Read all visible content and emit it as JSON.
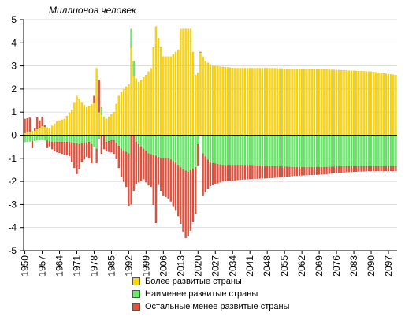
{
  "chart_data": {
    "type": "bar",
    "stacked": "diverging",
    "units_label": "Миллионов человек",
    "ylim": [
      -5,
      5
    ],
    "yticks": [
      -5,
      -4,
      -3,
      -2,
      -1,
      0,
      1,
      2,
      3,
      4,
      5
    ],
    "x_start": 1950,
    "x_end": 2100,
    "xtick_labels": [
      "1950",
      "1957",
      "1964",
      "1971",
      "1978",
      "1985",
      "1992",
      "1999",
      "2006",
      "2013",
      "2020",
      "2027",
      "2034",
      "2041",
      "2048",
      "2055",
      "2062",
      "2069",
      "2076",
      "2083",
      "2090",
      "2097"
    ],
    "grid": true,
    "legend_position": "bottom",
    "colors": {
      "developed": "#FFD700",
      "developed_edge": "#D4B000",
      "least_developed": "#66EE66",
      "least_developed_edge": "#33BB33",
      "other_developing": "#E8503A",
      "other_developing_edge": "#B0301F"
    },
    "series": [
      {
        "name": "Более развитые страны",
        "key": "developed",
        "keyframes": [
          [
            1950,
            0.1
          ],
          [
            1954,
            0.2
          ],
          [
            1957,
            0.4
          ],
          [
            1960,
            0.3
          ],
          [
            1963,
            0.6
          ],
          [
            1966,
            0.7
          ],
          [
            1969,
            1.1
          ],
          [
            1971,
            1.7
          ],
          [
            1973,
            1.4
          ],
          [
            1975,
            1.2
          ],
          [
            1978,
            1.4
          ],
          [
            1979,
            2.9
          ],
          [
            1980,
            1.0
          ],
          [
            1983,
            0.7
          ],
          [
            1986,
            1.0
          ],
          [
            1988,
            1.7
          ],
          [
            1990,
            2.0
          ],
          [
            1992,
            2.2
          ],
          [
            1993,
            3.8
          ],
          [
            1994,
            2.6
          ],
          [
            1996,
            2.3
          ],
          [
            1999,
            2.6
          ],
          [
            2001,
            2.9
          ],
          [
            2003,
            4.7
          ],
          [
            2004,
            4.2
          ],
          [
            2006,
            3.4
          ],
          [
            2009,
            3.4
          ],
          [
            2012,
            3.7
          ],
          [
            2013,
            4.6
          ],
          [
            2017,
            4.6
          ],
          [
            2019,
            2.6
          ],
          [
            2020,
            2.7
          ],
          [
            2021,
            3.6
          ],
          [
            2023,
            3.2
          ],
          [
            2026,
            3.0
          ],
          [
            2035,
            2.9
          ],
          [
            2050,
            2.9
          ],
          [
            2060,
            2.85
          ],
          [
            2070,
            2.85
          ],
          [
            2080,
            2.8
          ],
          [
            2090,
            2.75
          ],
          [
            2100,
            2.6
          ]
        ]
      },
      {
        "name": "Наименее развитые страны",
        "key": "least_developed",
        "keyframes": [
          [
            1950,
            -0.3
          ],
          [
            1957,
            -0.2
          ],
          [
            1961,
            -0.3
          ],
          [
            1964,
            -0.3
          ],
          [
            1968,
            -0.3
          ],
          [
            1972,
            -0.4
          ],
          [
            1976,
            -0.3
          ],
          [
            1979,
            -0.6
          ],
          [
            1981,
            0.3
          ],
          [
            1983,
            -0.3
          ],
          [
            1986,
            -0.2
          ],
          [
            1989,
            -0.6
          ],
          [
            1992,
            -0.8
          ],
          [
            1993,
            0.8
          ],
          [
            1994,
            0.6
          ],
          [
            1995,
            -0.3
          ],
          [
            1997,
            -0.5
          ],
          [
            2000,
            -0.8
          ],
          [
            2003,
            -0.9
          ],
          [
            2005,
            -1.0
          ],
          [
            2008,
            -1.0
          ],
          [
            2011,
            -1.2
          ],
          [
            2014,
            -1.5
          ],
          [
            2016,
            -1.6
          ],
          [
            2019,
            -1.4
          ],
          [
            2020,
            -0.4
          ],
          [
            2021,
            0.0
          ],
          [
            2022,
            -0.8
          ],
          [
            2025,
            -1.2
          ],
          [
            2030,
            -1.3
          ],
          [
            2040,
            -1.3
          ],
          [
            2050,
            -1.35
          ],
          [
            2060,
            -1.4
          ],
          [
            2070,
            -1.4
          ],
          [
            2080,
            -1.35
          ],
          [
            2090,
            -1.35
          ],
          [
            2100,
            -1.35
          ]
        ]
      },
      {
        "name": "Остальные менее развитые страны",
        "key": "other_developing",
        "keyframes": [
          [
            1950,
            0.6
          ],
          [
            1952,
            0.6
          ],
          [
            1953,
            -0.3
          ],
          [
            1955,
            0.5
          ],
          [
            1956,
            0.3
          ],
          [
            1957,
            0.4
          ],
          [
            1959,
            -0.3
          ],
          [
            1960,
            -0.2
          ],
          [
            1962,
            -0.4
          ],
          [
            1965,
            -0.5
          ],
          [
            1968,
            -0.6
          ],
          [
            1971,
            -1.3
          ],
          [
            1973,
            -0.8
          ],
          [
            1975,
            -0.6
          ],
          [
            1977,
            -0.8
          ],
          [
            1978,
            0.3
          ],
          [
            1979,
            -0.6
          ],
          [
            1980,
            1.4
          ],
          [
            1981,
            -0.8
          ],
          [
            1983,
            -0.4
          ],
          [
            1985,
            -0.5
          ],
          [
            1987,
            -0.7
          ],
          [
            1989,
            -1.2
          ],
          [
            1991,
            -1.5
          ],
          [
            1993,
            -3.0
          ],
          [
            1995,
            -1.8
          ],
          [
            1998,
            -1.3
          ],
          [
            2001,
            -1.4
          ],
          [
            2003,
            -2.9
          ],
          [
            2004,
            -1.2
          ],
          [
            2006,
            -1.6
          ],
          [
            2009,
            -1.8
          ],
          [
            2012,
            -2.2
          ],
          [
            2015,
            -2.9
          ],
          [
            2017,
            -2.6
          ],
          [
            2019,
            -2.0
          ],
          [
            2020,
            -0.9
          ],
          [
            2021,
            0.0
          ],
          [
            2022,
            -1.8
          ],
          [
            2025,
            -1.0
          ],
          [
            2030,
            -0.7
          ],
          [
            2040,
            -0.6
          ],
          [
            2050,
            -0.5
          ],
          [
            2060,
            -0.35
          ],
          [
            2070,
            -0.3
          ],
          [
            2080,
            -0.25
          ],
          [
            2090,
            -0.2
          ],
          [
            2100,
            -0.2
          ]
        ]
      }
    ]
  }
}
